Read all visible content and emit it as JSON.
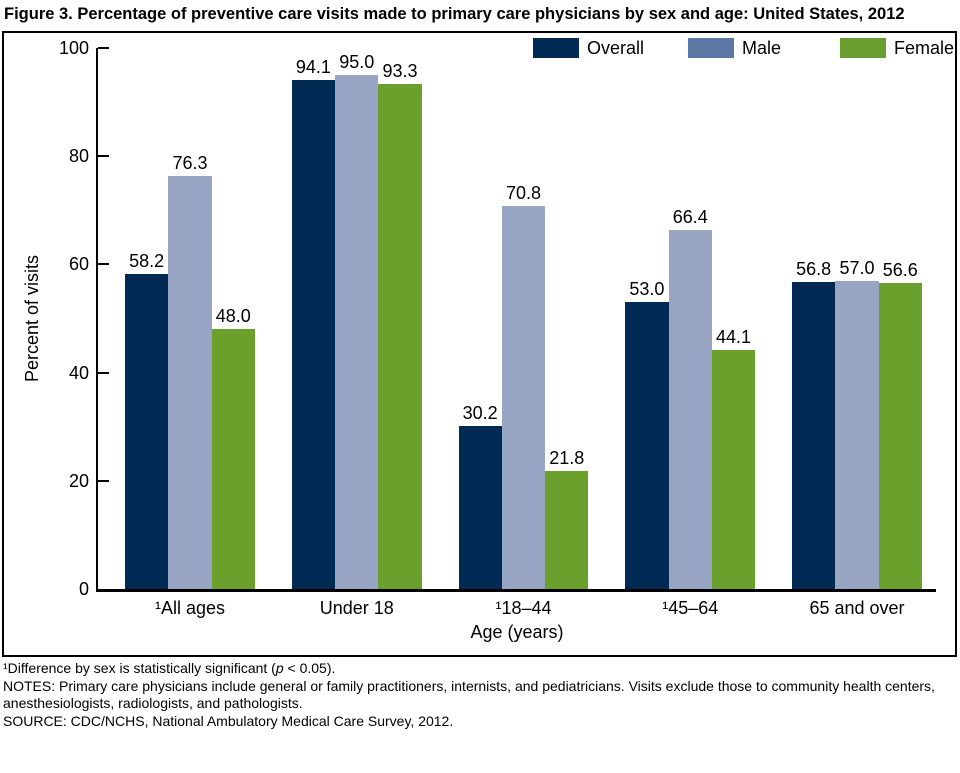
{
  "figure_title": "Figure 3. Percentage of preventive care visits made to primary care physicians by sex and age: United States, 2012",
  "chart_data": {
    "type": "bar",
    "title": "Figure 3. Percentage of preventive care visits made to primary care physicians by sex and age: United States, 2012",
    "categories": [
      "¹All ages",
      "Under 18",
      "¹18–44",
      "¹45–64",
      "65 and over"
    ],
    "series": [
      {
        "name": "Overall",
        "color": "#002a54",
        "legend_color": "#002a54",
        "values": [
          58.2,
          94.1,
          30.2,
          53.0,
          56.8
        ]
      },
      {
        "name": "Male",
        "color": "#99a6c3",
        "legend_color": "#5d78a5",
        "values": [
          76.3,
          95.0,
          70.8,
          66.4,
          57.0
        ]
      },
      {
        "name": "Female",
        "color": "#6ba02c",
        "legend_color": "#6a9e2e",
        "values": [
          48.0,
          93.3,
          21.8,
          44.1,
          56.6
        ]
      }
    ],
    "xlabel": "Age (years)",
    "ylabel": "Percent of visits",
    "ylim": [
      0,
      100
    ],
    "yticks": [
      0,
      20,
      40,
      60,
      80,
      100
    ],
    "legend_position": "top-right-inside",
    "grid": false,
    "value_label_decimals": 1
  },
  "footnotes": {
    "significance_pre": "¹Difference by sex is statistically significant (",
    "significance_p": "p",
    "significance_post": " < 0.05).",
    "notes": "NOTES: Primary care physicians include general or family practitioners, internists, and pediatricians. Visits exclude those to community health centers, anesthesiologists, radiologists, and pathologists.",
    "source": "SOURCE: CDC/NCHS, National Ambulatory Medical Care Survey, 2012."
  }
}
